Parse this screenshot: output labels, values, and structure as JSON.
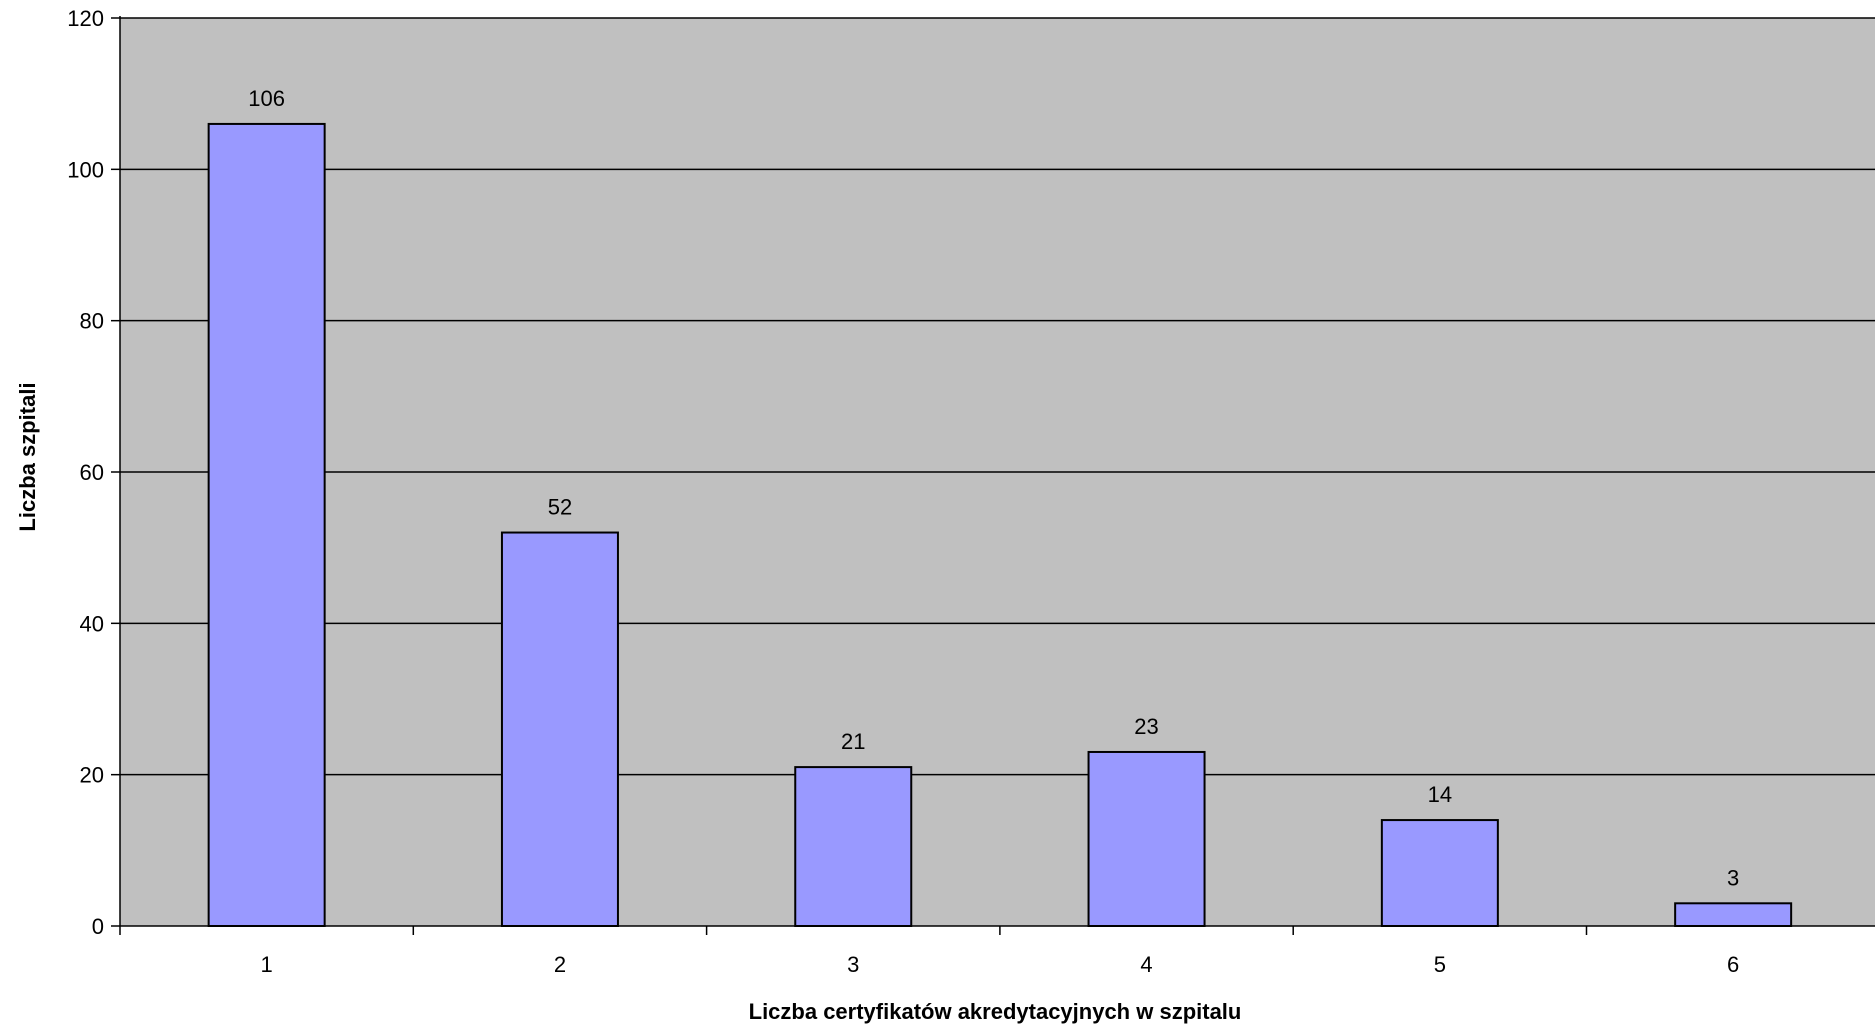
{
  "chart_data": {
    "type": "bar",
    "title": "",
    "xlabel": "Liczba certyfikatów akredytacyjnych w szpitalu",
    "ylabel": "Liczba szpitali",
    "categories": [
      "1",
      "2",
      "3",
      "4",
      "5",
      "6"
    ],
    "values": [
      106,
      52,
      21,
      23,
      14,
      3
    ],
    "ylim": [
      0,
      120
    ],
    "yticks": [
      0,
      20,
      40,
      60,
      80,
      100,
      120
    ],
    "grid": true,
    "legend": "none",
    "data_labels": true,
    "colors": {
      "plot_background": "#C0C0C0",
      "bar_fill": "#9999FF",
      "bar_stroke": "#000000",
      "gridline": "#000000"
    }
  }
}
